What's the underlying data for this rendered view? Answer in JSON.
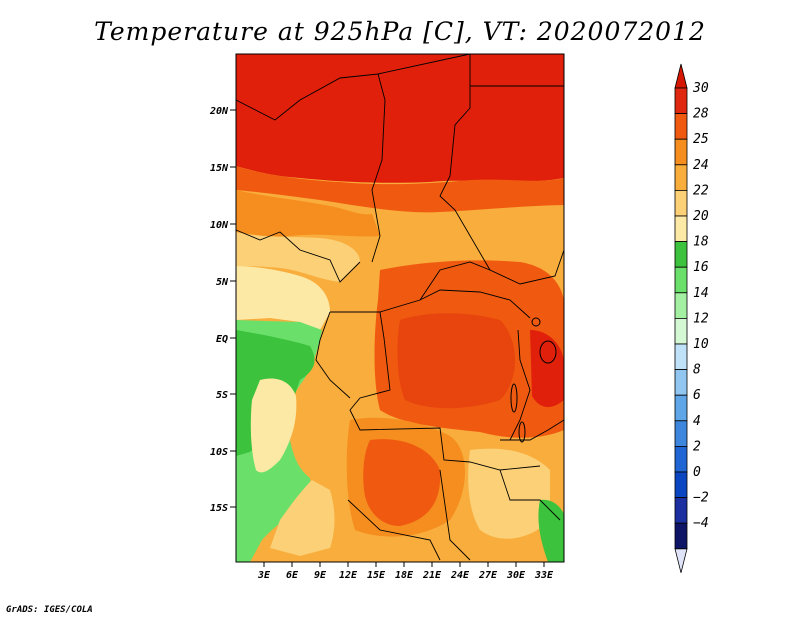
{
  "title": "Temperature at 925hPa [C], VT: 2020072012",
  "credit": "GrADS: IGES/COLA",
  "map": {
    "variable": "Temperature",
    "level": "925hPa",
    "units": "C",
    "valid_time": "2020072012",
    "region": "Central Africa",
    "lon_labels": [
      "3E",
      "6E",
      "9E",
      "12E",
      "15E",
      "18E",
      "21E",
      "24E",
      "27E",
      "30E",
      "33E"
    ],
    "lat_labels": [
      "20N",
      "15N",
      "10N",
      "5N",
      "EQ",
      "5S",
      "10S",
      "15S"
    ]
  },
  "colorbar": {
    "levels": [
      "30",
      "28",
      "25",
      "24",
      "22",
      "20",
      "18",
      "16",
      "14",
      "12",
      "10",
      "8",
      "6",
      "4",
      "2",
      "0",
      "−2",
      "−4"
    ],
    "colors": [
      "#e02810",
      "#f05a10",
      "#f58e1e",
      "#f8ad3c",
      "#fbd077",
      "#fde9a6",
      "#3cc23c",
      "#6ae06a",
      "#a3f0a3",
      "#d4f7d4",
      "#c0e2f8",
      "#90c6f0",
      "#5ea6e8",
      "#3d86de",
      "#1f66d4",
      "#0a46c2",
      "#1b2fa0",
      "#0f1566"
    ],
    "top_arrow_color": "#d51600",
    "bottom_arrow_color": "#e0e4f8"
  }
}
